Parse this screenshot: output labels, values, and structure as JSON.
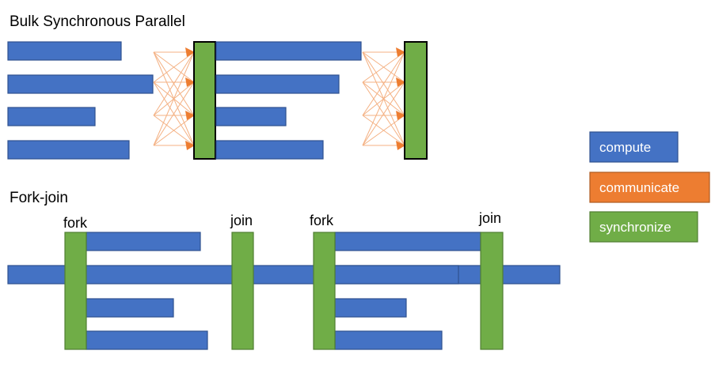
{
  "diagram": {
    "bsp": {
      "title": "Bulk Synchronous Parallel"
    },
    "forkjoin": {
      "title": "Fork-join",
      "labels": {
        "fork1": "fork",
        "join1": "join",
        "fork2": "fork",
        "join2": "join"
      }
    },
    "legend": [
      {
        "label": "compute",
        "color": "#4472c4"
      },
      {
        "label": "communicate",
        "color": "#ed7d31"
      },
      {
        "label": "synchronize",
        "color": "#70ad47"
      }
    ],
    "colors": {
      "compute": "#4472c4",
      "communicate": "#ed7d31",
      "synchronize": "#70ad47"
    }
  }
}
